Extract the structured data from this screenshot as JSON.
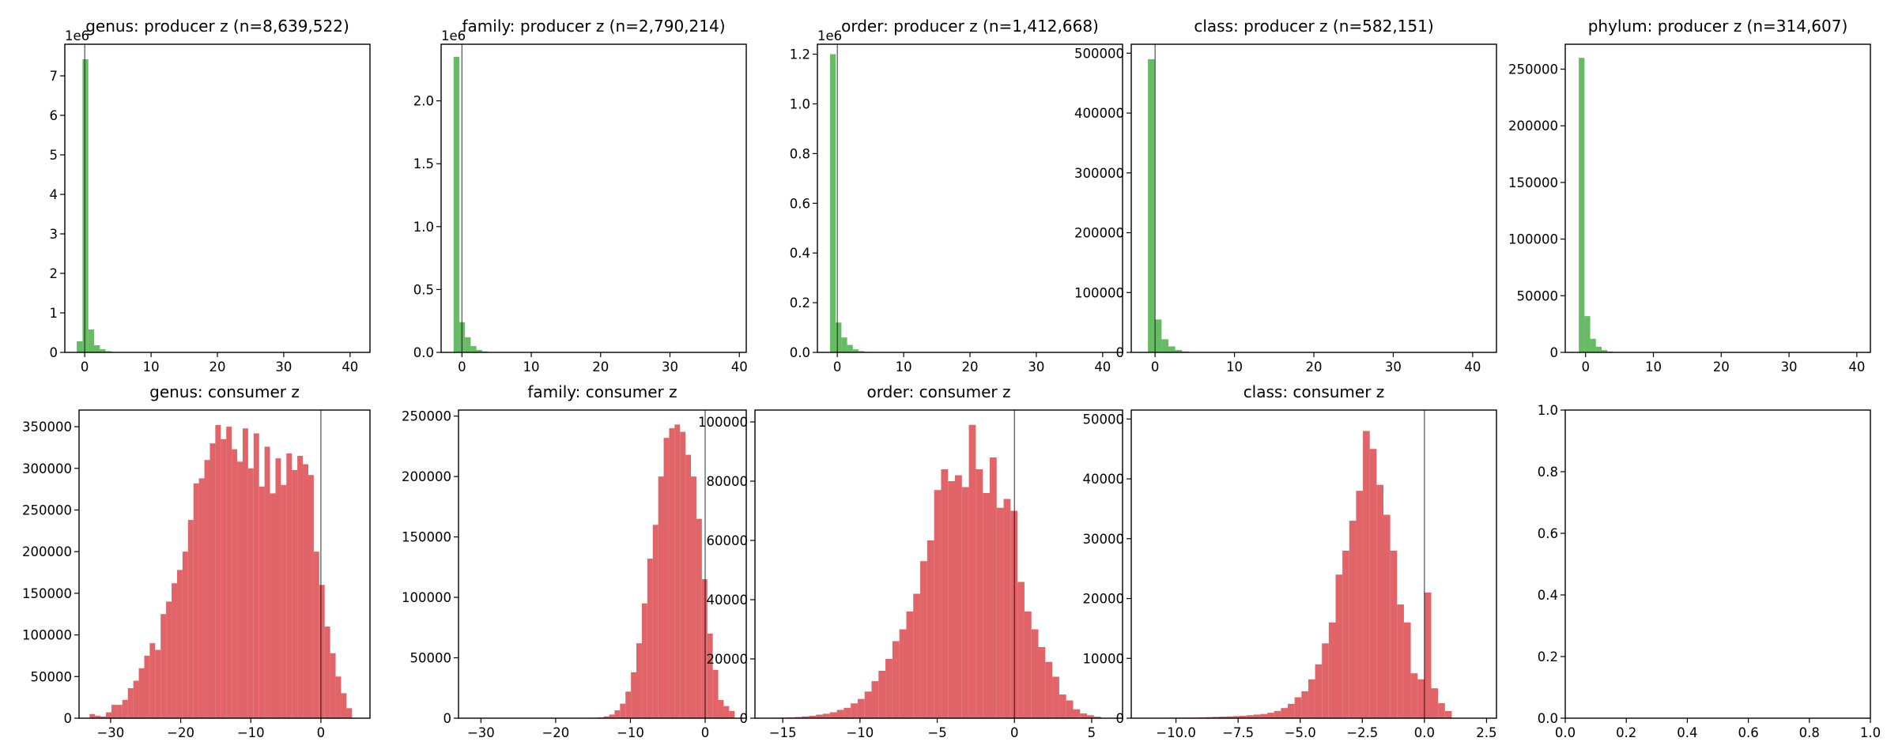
{
  "colors": {
    "producer": "#4daf4a",
    "consumer": "#e06468",
    "producer_alpha": 0.85,
    "consumer_alpha": 1.0
  },
  "chart_data": [
    {
      "type": "bar",
      "title": "genus: producer z (n=8,639,522)",
      "series": "producer",
      "offset_text": "1e6",
      "xlim": [
        -3,
        43
      ],
      "ylim": [
        0,
        7.8
      ],
      "xticks": [
        {
          "v": 0,
          "label": "0"
        },
        {
          "v": 10,
          "label": "10"
        },
        {
          "v": 20,
          "label": "20"
        },
        {
          "v": 30,
          "label": "30"
        },
        {
          "v": 40,
          "label": "40"
        }
      ],
      "yticks": [
        {
          "v": 0,
          "label": "0"
        },
        {
          "v": 1,
          "label": "1"
        },
        {
          "v": 2,
          "label": "2"
        },
        {
          "v": 3,
          "label": "3"
        },
        {
          "v": 4,
          "label": "4"
        },
        {
          "v": 5,
          "label": "5"
        },
        {
          "v": 6,
          "label": "6"
        },
        {
          "v": 7,
          "label": "7"
        }
      ],
      "bins": {
        "start": -1.2,
        "width": 0.87
      },
      "values": [
        0.28,
        7.42,
        0.58,
        0.18,
        0.08,
        0.03,
        0.012,
        0.005
      ],
      "zero_line": true
    },
    {
      "type": "bar",
      "title": "family: producer z (n=2,790,214)",
      "series": "producer",
      "offset_text": "1e6",
      "xlim": [
        -3,
        41
      ],
      "ylim": [
        0,
        2.45
      ],
      "xticks": [
        {
          "v": 0,
          "label": "0"
        },
        {
          "v": 10,
          "label": "10"
        },
        {
          "v": 20,
          "label": "20"
        },
        {
          "v": 30,
          "label": "30"
        },
        {
          "v": 40,
          "label": "40"
        }
      ],
      "yticks": [
        {
          "v": 0,
          "label": "0.0"
        },
        {
          "v": 0.5,
          "label": "0.5"
        },
        {
          "v": 1,
          "label": "1.0"
        },
        {
          "v": 1.5,
          "label": "1.5"
        },
        {
          "v": 2,
          "label": "2.0"
        }
      ],
      "bins": {
        "start": -1.2,
        "width": 0.82
      },
      "values": [
        2.35,
        0.24,
        0.12,
        0.05,
        0.02,
        0.008,
        0.003
      ],
      "zero_line": true
    },
    {
      "type": "bar",
      "title": "order: producer z (n=1,412,668)",
      "series": "producer",
      "offset_text": "1e6",
      "xlim": [
        -3,
        43
      ],
      "ylim": [
        0,
        1.24
      ],
      "xticks": [
        {
          "v": 0,
          "label": "0"
        },
        {
          "v": 10,
          "label": "10"
        },
        {
          "v": 20,
          "label": "20"
        },
        {
          "v": 30,
          "label": "30"
        },
        {
          "v": 40,
          "label": "40"
        }
      ],
      "yticks": [
        {
          "v": 0,
          "label": "0.0"
        },
        {
          "v": 0.2,
          "label": "0.2"
        },
        {
          "v": 0.4,
          "label": "0.4"
        },
        {
          "v": 0.6,
          "label": "0.6"
        },
        {
          "v": 0.8,
          "label": "0.8"
        },
        {
          "v": 1,
          "label": "1.0"
        },
        {
          "v": 1.2,
          "label": "1.2"
        }
      ],
      "bins": {
        "start": -1.1,
        "width": 0.86
      },
      "values": [
        1.2,
        0.12,
        0.06,
        0.03,
        0.012,
        0.005,
        0.002
      ],
      "zero_line": true
    },
    {
      "type": "bar",
      "title": "class: producer z (n=582,151)",
      "series": "producer",
      "offset_text": "",
      "xlim": [
        -3,
        43
      ],
      "ylim": [
        0,
        515000
      ],
      "xticks": [
        {
          "v": 0,
          "label": "0"
        },
        {
          "v": 10,
          "label": "10"
        },
        {
          "v": 20,
          "label": "20"
        },
        {
          "v": 30,
          "label": "30"
        },
        {
          "v": 40,
          "label": "40"
        }
      ],
      "yticks": [
        {
          "v": 0,
          "label": "0"
        },
        {
          "v": 100000,
          "label": "100000"
        },
        {
          "v": 200000,
          "label": "200000"
        },
        {
          "v": 300000,
          "label": "300000"
        },
        {
          "v": 400000,
          "label": "400000"
        },
        {
          "v": 500000,
          "label": "500000"
        }
      ],
      "bins": {
        "start": -0.9,
        "width": 0.86
      },
      "values": [
        490000,
        55000,
        22000,
        10000,
        4000,
        1500,
        600
      ],
      "zero_line": true
    },
    {
      "type": "bar",
      "title": "phylum: producer z (n=314,607)",
      "series": "producer",
      "offset_text": "",
      "xlim": [
        -3,
        42
      ],
      "ylim": [
        0,
        272000
      ],
      "xticks": [
        {
          "v": 0,
          "label": "0"
        },
        {
          "v": 10,
          "label": "10"
        },
        {
          "v": 20,
          "label": "20"
        },
        {
          "v": 30,
          "label": "30"
        },
        {
          "v": 40,
          "label": "40"
        }
      ],
      "yticks": [
        {
          "v": 0,
          "label": "0"
        },
        {
          "v": 50000,
          "label": "50000"
        },
        {
          "v": 100000,
          "label": "100000"
        },
        {
          "v": 150000,
          "label": "150000"
        },
        {
          "v": 200000,
          "label": "200000"
        },
        {
          "v": 250000,
          "label": "250000"
        }
      ],
      "bins": {
        "start": -1.0,
        "width": 0.84
      },
      "values": [
        260000,
        32000,
        12000,
        5000,
        2000,
        800,
        300
      ],
      "zero_line": false
    },
    {
      "type": "bar",
      "title": "genus: consumer z",
      "series": "consumer",
      "offset_text": "",
      "xlim": [
        -34.5,
        7
      ],
      "ylim": [
        0,
        370000
      ],
      "xticks": [
        {
          "v": -30,
          "label": "−30"
        },
        {
          "v": -20,
          "label": "−20"
        },
        {
          "v": -10,
          "label": "−10"
        },
        {
          "v": 0,
          "label": "0"
        }
      ],
      "yticks": [
        {
          "v": 0,
          "label": "0"
        },
        {
          "v": 50000,
          "label": "50000"
        },
        {
          "v": 100000,
          "label": "100000"
        },
        {
          "v": 150000,
          "label": "150000"
        },
        {
          "v": 200000,
          "label": "200000"
        },
        {
          "v": 250000,
          "label": "250000"
        },
        {
          "v": 300000,
          "label": "300000"
        },
        {
          "v": 350000,
          "label": "350000"
        }
      ],
      "bins": {
        "start": -33,
        "width": 0.78
      },
      "values": [
        5000,
        3000,
        2000,
        7000,
        16000,
        16000,
        22000,
        36000,
        45000,
        60000,
        75000,
        90000,
        82000,
        125000,
        140000,
        162000,
        178000,
        200000,
        238000,
        282000,
        288000,
        310000,
        330000,
        352000,
        335000,
        350000,
        323000,
        308000,
        348000,
        300000,
        342000,
        278000,
        326000,
        270000,
        312000,
        280000,
        318000,
        298000,
        315000,
        305000,
        292000,
        200000,
        160000,
        110000,
        78000,
        50000,
        30000,
        12000
      ],
      "zero_line": true
    },
    {
      "type": "bar",
      "title": "family: consumer z",
      "series": "consumer",
      "offset_text": "",
      "xlim": [
        -33,
        5.5
      ],
      "ylim": [
        0,
        255000
      ],
      "xticks": [
        {
          "v": -30,
          "label": "−30"
        },
        {
          "v": -20,
          "label": "−20"
        },
        {
          "v": -10,
          "label": "−10"
        },
        {
          "v": 0,
          "label": "0"
        }
      ],
      "yticks": [
        {
          "v": 0,
          "label": "0"
        },
        {
          "v": 50000,
          "label": "50000"
        },
        {
          "v": 100000,
          "label": "100000"
        },
        {
          "v": 150000,
          "label": "150000"
        },
        {
          "v": 200000,
          "label": "200000"
        },
        {
          "v": 250000,
          "label": "250000"
        }
      ],
      "bins": {
        "start": -16.5,
        "width": 0.73
      },
      "values": [
        100,
        200,
        400,
        700,
        1500,
        3000,
        6500,
        12000,
        22000,
        38000,
        62000,
        95000,
        132000,
        160000,
        200000,
        232000,
        240000,
        243000,
        237000,
        218000,
        200000,
        165000,
        115000,
        70000,
        40000,
        15000,
        10000,
        6000
      ],
      "zero_line": true
    },
    {
      "type": "bar",
      "title": "order: consumer z",
      "series": "consumer",
      "offset_text": "",
      "xlim": [
        -16.8,
        7
      ],
      "ylim": [
        0,
        104000
      ],
      "xticks": [
        {
          "v": -15,
          "label": "−15"
        },
        {
          "v": -10,
          "label": "−10"
        },
        {
          "v": -5,
          "label": "−5"
        },
        {
          "v": 0,
          "label": "0"
        },
        {
          "v": 5,
          "label": "5"
        }
      ],
      "yticks": [
        {
          "v": 0,
          "label": "0"
        },
        {
          "v": 20000,
          "label": "20000"
        },
        {
          "v": 40000,
          "label": "40000"
        },
        {
          "v": 60000,
          "label": "60000"
        },
        {
          "v": 80000,
          "label": "80000"
        },
        {
          "v": 100000,
          "label": "100000"
        }
      ],
      "bins": {
        "start": -16,
        "width": 0.45
      },
      "values": [
        100,
        150,
        200,
        300,
        400,
        600,
        800,
        1200,
        1500,
        2000,
        2800,
        3500,
        5000,
        6500,
        9000,
        12500,
        16000,
        20000,
        26000,
        30000,
        36000,
        42000,
        53000,
        60000,
        77000,
        84000,
        80000,
        82000,
        78000,
        99000,
        84000,
        76000,
        88000,
        71000,
        74000,
        70000,
        46000,
        36000,
        30000,
        24000,
        19000,
        14000,
        8000,
        6000,
        3000,
        1600,
        1000,
        500
      ],
      "zero_line": true
    },
    {
      "type": "bar",
      "title": "class: consumer z",
      "series": "consumer",
      "offset_text": "",
      "xlim": [
        -11.8,
        2.9
      ],
      "ylim": [
        0,
        51500
      ],
      "xticks": [
        {
          "v": -10,
          "label": "−10.0"
        },
        {
          "v": -7.5,
          "label": "−7.5"
        },
        {
          "v": -5,
          "label": "−5.0"
        },
        {
          "v": -2.5,
          "label": "−2.5"
        },
        {
          "v": 0,
          "label": "0.0"
        },
        {
          "v": 2.5,
          "label": "2.5"
        }
      ],
      "yticks": [
        {
          "v": 0,
          "label": "0"
        },
        {
          "v": 10000,
          "label": "10000"
        },
        {
          "v": 20000,
          "label": "20000"
        },
        {
          "v": 30000,
          "label": "30000"
        },
        {
          "v": 40000,
          "label": "40000"
        },
        {
          "v": 50000,
          "label": "50000"
        }
      ],
      "bins": {
        "start": -11,
        "width": 0.275
      },
      "values": [
        50,
        60,
        70,
        80,
        90,
        100,
        120,
        150,
        180,
        220,
        260,
        300,
        350,
        400,
        500,
        600,
        700,
        900,
        1200,
        1700,
        2400,
        3500,
        4500,
        6500,
        9000,
        12500,
        16000,
        24000,
        28000,
        33000,
        38000,
        48000,
        45000,
        39000,
        34000,
        28000,
        19000,
        16000,
        7500,
        6500,
        21000,
        5000,
        2500,
        1200
      ],
      "zero_line": true
    },
    {
      "type": "empty",
      "title": "",
      "series": "",
      "offset_text": "",
      "xlim": [
        0,
        1
      ],
      "ylim": [
        0,
        1
      ],
      "xticks": [
        {
          "v": 0,
          "label": "0.0"
        },
        {
          "v": 0.2,
          "label": "0.2"
        },
        {
          "v": 0.4,
          "label": "0.4"
        },
        {
          "v": 0.6,
          "label": "0.6"
        },
        {
          "v": 0.8,
          "label": "0.8"
        },
        {
          "v": 1,
          "label": "1.0"
        }
      ],
      "yticks": [
        {
          "v": 0,
          "label": "0.0"
        },
        {
          "v": 0.2,
          "label": "0.2"
        },
        {
          "v": 0.4,
          "label": "0.4"
        },
        {
          "v": 0.6,
          "label": "0.6"
        },
        {
          "v": 0.8,
          "label": "0.8"
        },
        {
          "v": 1,
          "label": "1.0"
        }
      ],
      "bins": {
        "start": 0,
        "width": 0
      },
      "values": [],
      "zero_line": false
    }
  ]
}
